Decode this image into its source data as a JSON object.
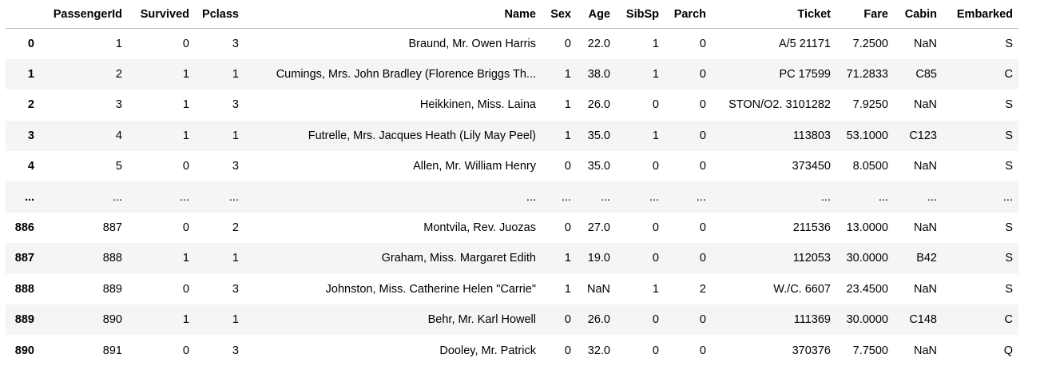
{
  "columns": [
    "",
    "PassengerId",
    "Survived",
    "Pclass",
    "Name",
    "Sex",
    "Age",
    "SibSp",
    "Parch",
    "Ticket",
    "Fare",
    "Cabin",
    "Embarked"
  ],
  "rows": [
    [
      "0",
      "1",
      "0",
      "3",
      "Braund, Mr. Owen Harris",
      "0",
      "22.0",
      "1",
      "0",
      "A/5 21171",
      "7.2500",
      "NaN",
      "S"
    ],
    [
      "1",
      "2",
      "1",
      "1",
      "Cumings, Mrs. John Bradley (Florence Briggs Th...",
      "1",
      "38.0",
      "1",
      "0",
      "PC 17599",
      "71.2833",
      "C85",
      "C"
    ],
    [
      "2",
      "3",
      "1",
      "3",
      "Heikkinen, Miss. Laina",
      "1",
      "26.0",
      "0",
      "0",
      "STON/O2. 3101282",
      "7.9250",
      "NaN",
      "S"
    ],
    [
      "3",
      "4",
      "1",
      "1",
      "Futrelle, Mrs. Jacques Heath (Lily May Peel)",
      "1",
      "35.0",
      "1",
      "0",
      "113803",
      "53.1000",
      "C123",
      "S"
    ],
    [
      "4",
      "5",
      "0",
      "3",
      "Allen, Mr. William Henry",
      "0",
      "35.0",
      "0",
      "0",
      "373450",
      "8.0500",
      "NaN",
      "S"
    ],
    [
      "...",
      "...",
      "...",
      "...",
      "...",
      "...",
      "...",
      "...",
      "...",
      "...",
      "...",
      "...",
      "..."
    ],
    [
      "886",
      "887",
      "0",
      "2",
      "Montvila, Rev. Juozas",
      "0",
      "27.0",
      "0",
      "0",
      "211536",
      "13.0000",
      "NaN",
      "S"
    ],
    [
      "887",
      "888",
      "1",
      "1",
      "Graham, Miss. Margaret Edith",
      "1",
      "19.0",
      "0",
      "0",
      "112053",
      "30.0000",
      "B42",
      "S"
    ],
    [
      "888",
      "889",
      "0",
      "3",
      "Johnston, Miss. Catherine Helen \"Carrie\"",
      "1",
      "NaN",
      "1",
      "2",
      "W./C. 6607",
      "23.4500",
      "NaN",
      "S"
    ],
    [
      "889",
      "890",
      "1",
      "1",
      "Behr, Mr. Karl Howell",
      "0",
      "26.0",
      "0",
      "0",
      "111369",
      "30.0000",
      "C148",
      "C"
    ],
    [
      "890",
      "891",
      "0",
      "3",
      "Dooley, Mr. Patrick",
      "0",
      "32.0",
      "0",
      "0",
      "370376",
      "7.7500",
      "NaN",
      "Q"
    ]
  ]
}
